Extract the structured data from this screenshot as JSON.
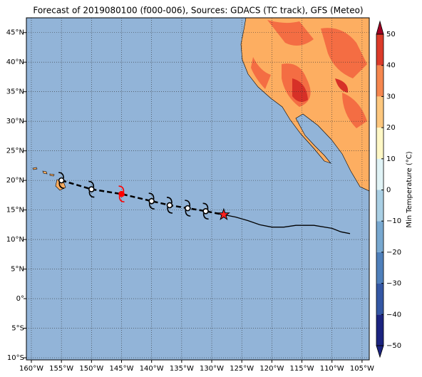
{
  "chart_data": {
    "type": "map",
    "title": "Forecast of 2019080100 (f000-006), Sources: GDACS (TC track), GFS (Meteo)",
    "xlim": [
      -160.83,
      -103.8
    ],
    "ylim": [
      -10.36,
      47.5
    ],
    "xticks": [
      {
        "value": -160,
        "label": "160°W"
      },
      {
        "value": -155,
        "label": "155°W"
      },
      {
        "value": -150,
        "label": "150°W"
      },
      {
        "value": -145,
        "label": "145°W"
      },
      {
        "value": -140,
        "label": "140°W"
      },
      {
        "value": -135,
        "label": "135°W"
      },
      {
        "value": -130,
        "label": "130°W"
      },
      {
        "value": -125,
        "label": "125°W"
      },
      {
        "value": -120,
        "label": "120°W"
      },
      {
        "value": -115,
        "label": "115°W"
      },
      {
        "value": -110,
        "label": "110°W"
      },
      {
        "value": -105,
        "label": "105°W"
      }
    ],
    "yticks": [
      {
        "value": -10,
        "label": "10°S"
      },
      {
        "value": -5,
        "label": "5°S"
      },
      {
        "value": 0,
        "label": "0°"
      },
      {
        "value": 5,
        "label": "5°N"
      },
      {
        "value": 10,
        "label": "10°N"
      },
      {
        "value": 15,
        "label": "15°N"
      },
      {
        "value": 20,
        "label": "20°N"
      },
      {
        "value": 25,
        "label": "25°N"
      },
      {
        "value": 30,
        "label": "30°N"
      },
      {
        "value": 35,
        "label": "35°N"
      },
      {
        "value": 40,
        "label": "40°N"
      },
      {
        "value": 45,
        "label": "45°N"
      }
    ],
    "grid": true,
    "past_track": {
      "color": "#000000",
      "lon": [
        -128,
        -126,
        -124,
        -122,
        -120,
        -118,
        -116,
        -113,
        -110,
        -108.5,
        -107
      ],
      "lat": [
        14.2,
        13.8,
        13.2,
        12.5,
        12.1,
        12.1,
        12.4,
        12.4,
        11.9,
        11.3,
        11.0
      ]
    },
    "forecast_track": {
      "color": "#000000",
      "highlight_color": "#ff0000",
      "highlight_index": 2,
      "lon": [
        -155,
        -150,
        -145,
        -140,
        -137,
        -134,
        -131
      ],
      "lat": [
        20,
        18.5,
        17.7,
        16.5,
        15.8,
        15.3,
        14.8
      ]
    },
    "current_position": {
      "color": "#ff2020",
      "lon": -128,
      "lat": 14.2
    },
    "colorbar": {
      "label": "Min Temperature (°C)",
      "lim": [
        -50,
        50
      ],
      "ticks": [
        {
          "value": -50,
          "label": "−50"
        },
        {
          "value": -40,
          "label": "−40"
        },
        {
          "value": -30,
          "label": "−30"
        },
        {
          "value": -20,
          "label": "−20"
        },
        {
          "value": -10,
          "label": "−10"
        },
        0,
        10,
        20,
        30,
        40,
        50
      ],
      "colors": [
        "#1c2480",
        "#3457a4",
        "#4f80bb",
        "#78a8d0",
        "#a9cfe4",
        "#e0f3f6",
        "#fff8c6",
        "#fdc77e",
        "#f6874f",
        "#dc3b2a",
        "#a00024"
      ]
    }
  }
}
